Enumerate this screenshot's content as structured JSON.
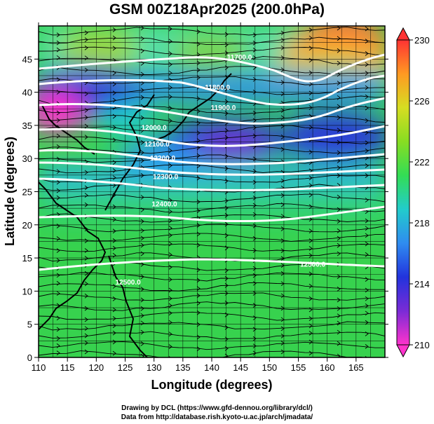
{
  "title": "GSM 00Z18Apr2025 (200.0hPa)",
  "footer": {
    "line1": "Drawing by DCL (https://www.gfd-dennou.org/library/dcl/)",
    "line2": "Data from http://database.rish.kyoto-u.ac.jp/arch/jmadata/"
  },
  "chart_data": {
    "type": "heatmap",
    "xlabel": "Longitude (degrees)",
    "ylabel": "Latitude  (degrees)",
    "xlim": [
      110,
      170
    ],
    "ylim": [
      0,
      50
    ],
    "xticks": [
      110,
      115,
      120,
      125,
      130,
      135,
      140,
      145,
      150,
      155,
      160,
      165
    ],
    "yticks": [
      0,
      5,
      10,
      15,
      20,
      25,
      30,
      35,
      40,
      45
    ],
    "colorbar": {
      "min": 210,
      "max": 230,
      "ticks": [
        210,
        214,
        218,
        222,
        226,
        230
      ],
      "colors": [
        "#ff33cc",
        "#7a2bd6",
        "#2233dd",
        "#2f8cf0",
        "#22cccc",
        "#33dd55",
        "#88dd22",
        "#d6dd22",
        "#ff9922",
        "#ff3333"
      ]
    },
    "contour_labels": [
      {
        "text": "11700.0",
        "lon": 144.8,
        "lat": 44.9
      },
      {
        "text": "11800.0",
        "lon": 141.0,
        "lat": 40.4
      },
      {
        "text": "11900.0",
        "lon": 142.0,
        "lat": 37.3
      },
      {
        "text": "12000.0",
        "lon": 130.0,
        "lat": 34.3
      },
      {
        "text": "12100.0",
        "lon": 130.5,
        "lat": 31.8
      },
      {
        "text": "12200.0",
        "lon": 131.5,
        "lat": 29.7
      },
      {
        "text": "12300.0",
        "lon": 132.0,
        "lat": 26.9
      },
      {
        "text": "12400.0",
        "lon": 131.8,
        "lat": 22.8
      },
      {
        "text": "12500.0",
        "lon": 157.5,
        "lat": 13.7
      },
      {
        "text": "12500.0",
        "lon": 125.5,
        "lat": 11.0
      }
    ]
  }
}
